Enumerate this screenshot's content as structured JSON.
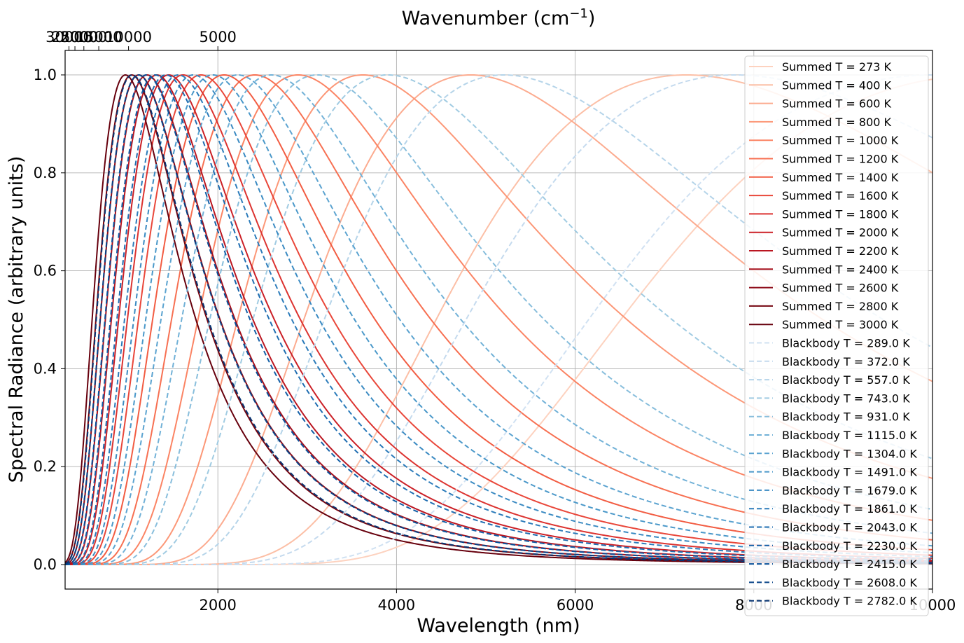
{
  "chart_data": {
    "type": "line",
    "xlabel": "Wavelength (nm)",
    "ylabel": "Spectral Radiance (arbitrary units)",
    "top_xlabel": "Wavenumber (cm",
    "top_xlabel_sup": "−1",
    "top_xlabel_end": ")",
    "xlim": [
      290,
      10000
    ],
    "ylim": [
      -0.05,
      1.05
    ],
    "x_ticks": [
      2000,
      4000,
      6000,
      8000,
      10000
    ],
    "x_tick_labels": [
      "2000",
      "4000",
      "6000",
      "8000",
      "10000"
    ],
    "y_ticks": [
      0.0,
      0.2,
      0.4,
      0.6,
      0.8,
      1.0
    ],
    "y_tick_labels": [
      "0.0",
      "0.2",
      "0.4",
      "0.6",
      "0.8",
      "1.0"
    ],
    "top_ticks_wavenumber": [
      30000,
      25000,
      20000,
      15000,
      10000,
      5000
    ],
    "top_tick_labels": [
      "30000",
      "25000",
      "20000",
      "15000",
      "10000",
      "5000"
    ],
    "grid": true,
    "legend_position": "upper-right",
    "normalized": true,
    "summed_series": [
      {
        "name": "Summed T = 273 K",
        "T": 273,
        "color": "#fdd2bf"
      },
      {
        "name": "Summed T = 400 K",
        "T": 400,
        "color": "#fcbfa6"
      },
      {
        "name": "Summed T = 600 K",
        "T": 600,
        "color": "#fcab8f"
      },
      {
        "name": "Summed T = 800 K",
        "T": 800,
        "color": "#fc9777"
      },
      {
        "name": "Summed T = 1000 K",
        "T": 1000,
        "color": "#fb8464"
      },
      {
        "name": "Summed T = 1200 K",
        "T": 1200,
        "color": "#f77052"
      },
      {
        "name": "Summed T = 1400 K",
        "T": 1400,
        "color": "#f25c42"
      },
      {
        "name": "Summed T = 1600 K",
        "T": 1600,
        "color": "#e9473a"
      },
      {
        "name": "Summed T = 1800 K",
        "T": 1800,
        "color": "#dc3330"
      },
      {
        "name": "Summed T = 2000 K",
        "T": 2000,
        "color": "#cb2027"
      },
      {
        "name": "Summed T = 2200 K",
        "T": 2200,
        "color": "#ba1621"
      },
      {
        "name": "Summed T = 2400 K",
        "T": 2400,
        "color": "#a6101d"
      },
      {
        "name": "Summed T = 2600 K",
        "T": 2600,
        "color": "#8d0b18"
      },
      {
        "name": "Summed T = 2800 K",
        "T": 2800,
        "color": "#75040f"
      },
      {
        "name": "Summed T = 3000 K",
        "T": 3000,
        "color": "#67000d"
      }
    ],
    "blackbody_series": [
      {
        "name": "Blackbody T = 289.0 K",
        "T": 289.0,
        "color": "#d0e1f2"
      },
      {
        "name": "Blackbody T = 372.0 K",
        "T": 372.0,
        "color": "#c4daee"
      },
      {
        "name": "Blackbody T = 557.0 K",
        "T": 557.0,
        "color": "#b5d4e9"
      },
      {
        "name": "Blackbody T = 743.0 K",
        "T": 743.0,
        "color": "#a0cbe2"
      },
      {
        "name": "Blackbody T = 931.0 K",
        "T": 931.0,
        "color": "#88bedc"
      },
      {
        "name": "Blackbody T = 1115.0 K",
        "T": 1115.0,
        "color": "#71b1d7"
      },
      {
        "name": "Blackbody T = 1304.0 K",
        "T": 1304.0,
        "color": "#5ba3d0"
      },
      {
        "name": "Blackbody T = 1491.0 K",
        "T": 1491.0,
        "color": "#4a98c9"
      },
      {
        "name": "Blackbody T = 1679.0 K",
        "T": 1679.0,
        "color": "#3a8ac2"
      },
      {
        "name": "Blackbody T = 1861.0 K",
        "T": 1861.0,
        "color": "#2b7bba"
      },
      {
        "name": "Blackbody T = 2043.0 K",
        "T": 2043.0,
        "color": "#1f6db1"
      },
      {
        "name": "Blackbody T = 2230.0 K",
        "T": 2230.0,
        "color": "#135fa7"
      },
      {
        "name": "Blackbody T = 2415.0 K",
        "T": 2415.0,
        "color": "#09519a"
      },
      {
        "name": "Blackbody T = 2608.0 K",
        "T": 2608.0,
        "color": "#084387"
      },
      {
        "name": "Blackbody T = 2782.0 K",
        "T": 2782.0,
        "color": "#083572"
      }
    ]
  }
}
